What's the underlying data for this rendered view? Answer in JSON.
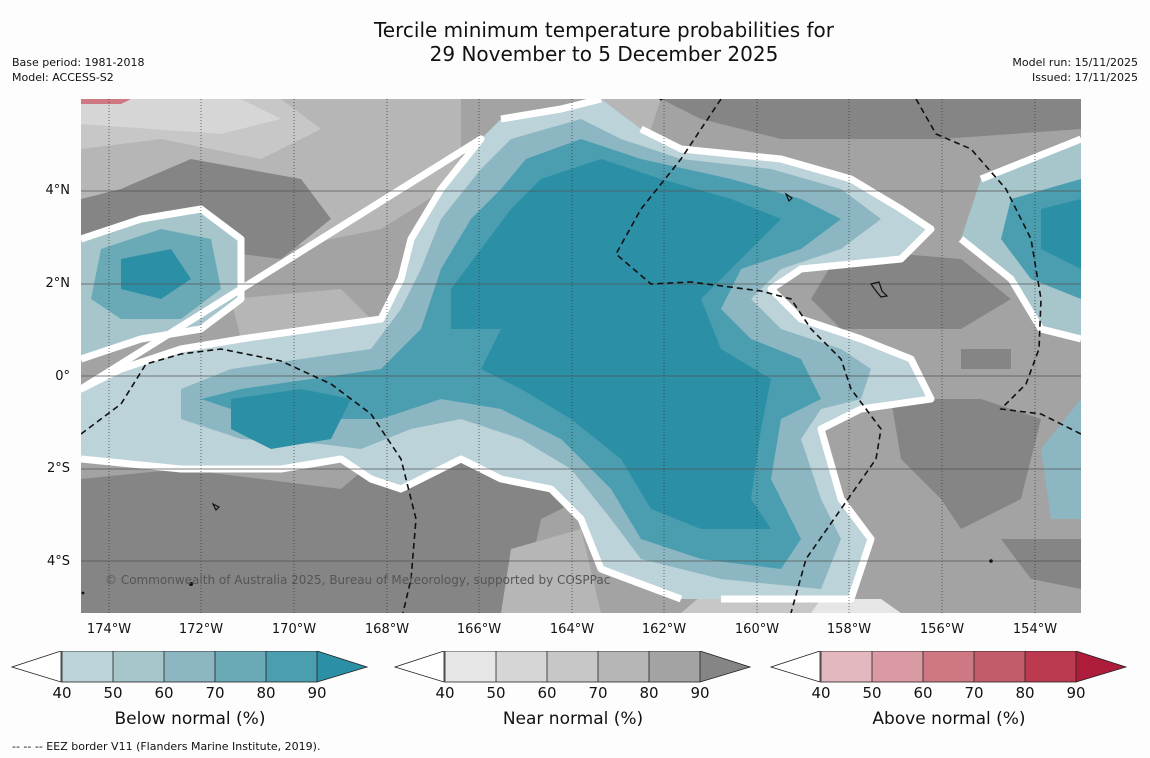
{
  "title_line1": "Tercile minimum temperature probabilities for",
  "title_line2": "29 November to 5 December 2025",
  "base_period": "Base period: 1981-2018",
  "model": "Model: ACCESS-S2",
  "model_run": "Model run: 15/11/2025",
  "issued": "Issued: 17/11/2025",
  "lat_labels": [
    "4°N",
    "2°N",
    "0°",
    "2°S",
    "4°S"
  ],
  "lon_labels": [
    "174°W",
    "172°W",
    "170°W",
    "168°W",
    "166°W",
    "164°W",
    "162°W",
    "160°W",
    "158°W",
    "156°W",
    "154°W"
  ],
  "copyright": "© Commonwealth of Australia 2025, Bureau of Meteorology, supported by COSPPac",
  "colorbars": [
    {
      "title": "Below normal (%)",
      "ticks": [
        "40",
        "50",
        "60",
        "70",
        "80",
        "90"
      ],
      "colors": [
        "#bcd3d9",
        "#a6c6cc",
        "#8bb6c2",
        "#6aaab7",
        "#4a9eb0",
        "#2b8fa6"
      ]
    },
    {
      "title": "Near normal (%)",
      "ticks": [
        "40",
        "50",
        "60",
        "70",
        "80",
        "90"
      ],
      "colors": [
        "#e6e6e6",
        "#d6d6d6",
        "#c7c7c7",
        "#b6b6b6",
        "#a3a3a3",
        "#858585"
      ]
    },
    {
      "title": "Above normal (%)",
      "ticks": [
        "40",
        "50",
        "60",
        "70",
        "80",
        "90"
      ],
      "colors": [
        "#e4b8bf",
        "#d99aa3",
        "#cd7882",
        "#c35c6a",
        "#bb3a50",
        "#ae1c3c"
      ]
    }
  ],
  "footnote": "--  --  -- EEZ border V11 (Flanders Marine Institute, 2019)."
}
